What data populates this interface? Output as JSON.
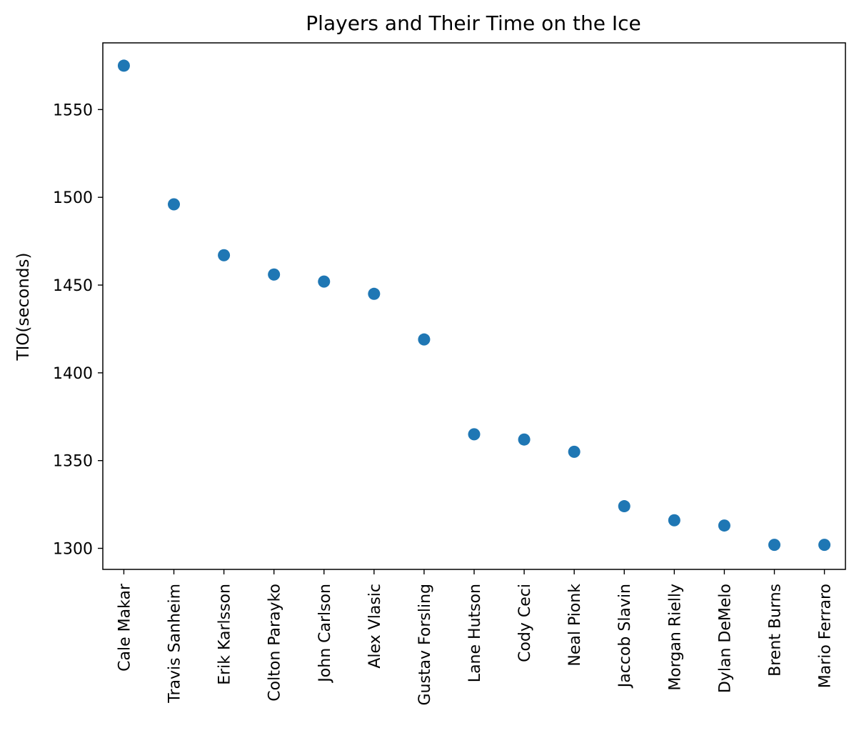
{
  "chart_data": {
    "type": "scatter",
    "title": "Players and Their Time on the Ice",
    "xlabel": "",
    "ylabel": "TIO(seconds)",
    "categories": [
      "Cale Makar",
      "Travis Sanheim",
      "Erik Karlsson",
      "Colton Parayko",
      "John Carlson",
      "Alex Vlasic",
      "Gustav Forsling",
      "Lane Hutson",
      "Cody Ceci",
      "Neal Pionk",
      "Jaccob Slavin",
      "Morgan Rielly",
      "Dylan DeMelo",
      "Brent Burns",
      "Mario Ferraro"
    ],
    "values": [
      1575,
      1496,
      1467,
      1456,
      1452,
      1445,
      1419,
      1365,
      1362,
      1355,
      1324,
      1316,
      1313,
      1302,
      1302
    ],
    "ylim": [
      1288,
      1588
    ],
    "yticks": [
      1300,
      1350,
      1400,
      1450,
      1500,
      1550
    ],
    "grid": false,
    "legend": "none",
    "marker_color": "#1f77b4"
  }
}
